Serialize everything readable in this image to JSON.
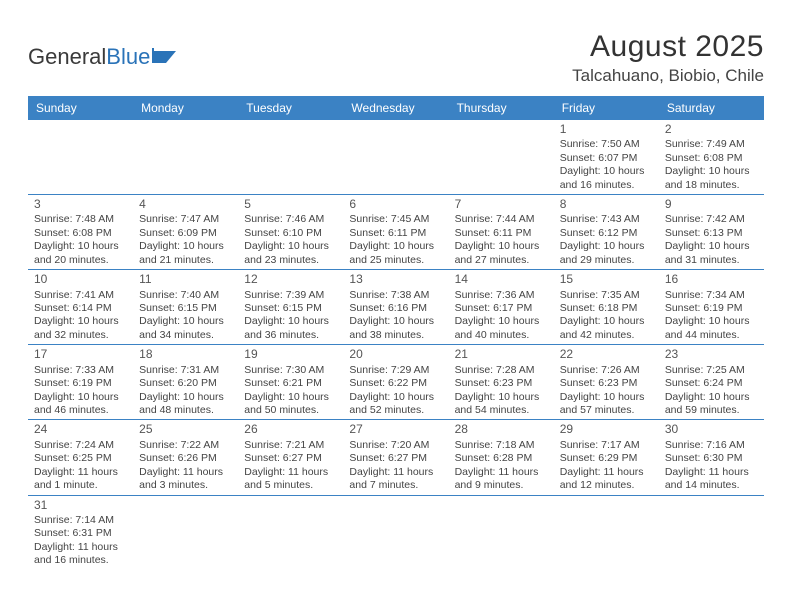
{
  "logo": {
    "text1": "General",
    "text2": "Blue"
  },
  "title": "August 2025",
  "location": "Talcahuano, Biobio, Chile",
  "weekdays": [
    "Sunday",
    "Monday",
    "Tuesday",
    "Wednesday",
    "Thursday",
    "Friday",
    "Saturday"
  ],
  "colors": {
    "header_bg": "#3b82c4",
    "header_fg": "#ffffff",
    "rule": "#3b82c4",
    "text": "#444444",
    "logo_blue": "#2a73b8"
  },
  "weeks": [
    [
      null,
      null,
      null,
      null,
      null,
      {
        "n": "1",
        "sunrise": "Sunrise: 7:50 AM",
        "sunset": "Sunset: 6:07 PM",
        "day1": "Daylight: 10 hours",
        "day2": "and 16 minutes."
      },
      {
        "n": "2",
        "sunrise": "Sunrise: 7:49 AM",
        "sunset": "Sunset: 6:08 PM",
        "day1": "Daylight: 10 hours",
        "day2": "and 18 minutes."
      }
    ],
    [
      {
        "n": "3",
        "sunrise": "Sunrise: 7:48 AM",
        "sunset": "Sunset: 6:08 PM",
        "day1": "Daylight: 10 hours",
        "day2": "and 20 minutes."
      },
      {
        "n": "4",
        "sunrise": "Sunrise: 7:47 AM",
        "sunset": "Sunset: 6:09 PM",
        "day1": "Daylight: 10 hours",
        "day2": "and 21 minutes."
      },
      {
        "n": "5",
        "sunrise": "Sunrise: 7:46 AM",
        "sunset": "Sunset: 6:10 PM",
        "day1": "Daylight: 10 hours",
        "day2": "and 23 minutes."
      },
      {
        "n": "6",
        "sunrise": "Sunrise: 7:45 AM",
        "sunset": "Sunset: 6:11 PM",
        "day1": "Daylight: 10 hours",
        "day2": "and 25 minutes."
      },
      {
        "n": "7",
        "sunrise": "Sunrise: 7:44 AM",
        "sunset": "Sunset: 6:11 PM",
        "day1": "Daylight: 10 hours",
        "day2": "and 27 minutes."
      },
      {
        "n": "8",
        "sunrise": "Sunrise: 7:43 AM",
        "sunset": "Sunset: 6:12 PM",
        "day1": "Daylight: 10 hours",
        "day2": "and 29 minutes."
      },
      {
        "n": "9",
        "sunrise": "Sunrise: 7:42 AM",
        "sunset": "Sunset: 6:13 PM",
        "day1": "Daylight: 10 hours",
        "day2": "and 31 minutes."
      }
    ],
    [
      {
        "n": "10",
        "sunrise": "Sunrise: 7:41 AM",
        "sunset": "Sunset: 6:14 PM",
        "day1": "Daylight: 10 hours",
        "day2": "and 32 minutes."
      },
      {
        "n": "11",
        "sunrise": "Sunrise: 7:40 AM",
        "sunset": "Sunset: 6:15 PM",
        "day1": "Daylight: 10 hours",
        "day2": "and 34 minutes."
      },
      {
        "n": "12",
        "sunrise": "Sunrise: 7:39 AM",
        "sunset": "Sunset: 6:15 PM",
        "day1": "Daylight: 10 hours",
        "day2": "and 36 minutes."
      },
      {
        "n": "13",
        "sunrise": "Sunrise: 7:38 AM",
        "sunset": "Sunset: 6:16 PM",
        "day1": "Daylight: 10 hours",
        "day2": "and 38 minutes."
      },
      {
        "n": "14",
        "sunrise": "Sunrise: 7:36 AM",
        "sunset": "Sunset: 6:17 PM",
        "day1": "Daylight: 10 hours",
        "day2": "and 40 minutes."
      },
      {
        "n": "15",
        "sunrise": "Sunrise: 7:35 AM",
        "sunset": "Sunset: 6:18 PM",
        "day1": "Daylight: 10 hours",
        "day2": "and 42 minutes."
      },
      {
        "n": "16",
        "sunrise": "Sunrise: 7:34 AM",
        "sunset": "Sunset: 6:19 PM",
        "day1": "Daylight: 10 hours",
        "day2": "and 44 minutes."
      }
    ],
    [
      {
        "n": "17",
        "sunrise": "Sunrise: 7:33 AM",
        "sunset": "Sunset: 6:19 PM",
        "day1": "Daylight: 10 hours",
        "day2": "and 46 minutes."
      },
      {
        "n": "18",
        "sunrise": "Sunrise: 7:31 AM",
        "sunset": "Sunset: 6:20 PM",
        "day1": "Daylight: 10 hours",
        "day2": "and 48 minutes."
      },
      {
        "n": "19",
        "sunrise": "Sunrise: 7:30 AM",
        "sunset": "Sunset: 6:21 PM",
        "day1": "Daylight: 10 hours",
        "day2": "and 50 minutes."
      },
      {
        "n": "20",
        "sunrise": "Sunrise: 7:29 AM",
        "sunset": "Sunset: 6:22 PM",
        "day1": "Daylight: 10 hours",
        "day2": "and 52 minutes."
      },
      {
        "n": "21",
        "sunrise": "Sunrise: 7:28 AM",
        "sunset": "Sunset: 6:23 PM",
        "day1": "Daylight: 10 hours",
        "day2": "and 54 minutes."
      },
      {
        "n": "22",
        "sunrise": "Sunrise: 7:26 AM",
        "sunset": "Sunset: 6:23 PM",
        "day1": "Daylight: 10 hours",
        "day2": "and 57 minutes."
      },
      {
        "n": "23",
        "sunrise": "Sunrise: 7:25 AM",
        "sunset": "Sunset: 6:24 PM",
        "day1": "Daylight: 10 hours",
        "day2": "and 59 minutes."
      }
    ],
    [
      {
        "n": "24",
        "sunrise": "Sunrise: 7:24 AM",
        "sunset": "Sunset: 6:25 PM",
        "day1": "Daylight: 11 hours",
        "day2": "and 1 minute."
      },
      {
        "n": "25",
        "sunrise": "Sunrise: 7:22 AM",
        "sunset": "Sunset: 6:26 PM",
        "day1": "Daylight: 11 hours",
        "day2": "and 3 minutes."
      },
      {
        "n": "26",
        "sunrise": "Sunrise: 7:21 AM",
        "sunset": "Sunset: 6:27 PM",
        "day1": "Daylight: 11 hours",
        "day2": "and 5 minutes."
      },
      {
        "n": "27",
        "sunrise": "Sunrise: 7:20 AM",
        "sunset": "Sunset: 6:27 PM",
        "day1": "Daylight: 11 hours",
        "day2": "and 7 minutes."
      },
      {
        "n": "28",
        "sunrise": "Sunrise: 7:18 AM",
        "sunset": "Sunset: 6:28 PM",
        "day1": "Daylight: 11 hours",
        "day2": "and 9 minutes."
      },
      {
        "n": "29",
        "sunrise": "Sunrise: 7:17 AM",
        "sunset": "Sunset: 6:29 PM",
        "day1": "Daylight: 11 hours",
        "day2": "and 12 minutes."
      },
      {
        "n": "30",
        "sunrise": "Sunrise: 7:16 AM",
        "sunset": "Sunset: 6:30 PM",
        "day1": "Daylight: 11 hours",
        "day2": "and 14 minutes."
      }
    ],
    [
      {
        "n": "31",
        "sunrise": "Sunrise: 7:14 AM",
        "sunset": "Sunset: 6:31 PM",
        "day1": "Daylight: 11 hours",
        "day2": "and 16 minutes."
      },
      null,
      null,
      null,
      null,
      null,
      null
    ]
  ]
}
